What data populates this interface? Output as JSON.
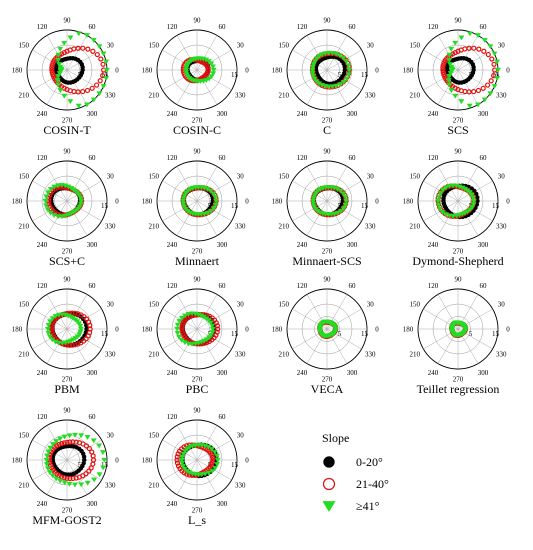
{
  "legend": {
    "title": "Slope",
    "items": [
      {
        "label": "0-20°",
        "marker": "circle-filled",
        "color": "#000000"
      },
      {
        "label": "21-40°",
        "marker": "circle-open",
        "color": "#e01010"
      },
      {
        "label": "≥41°",
        "marker": "triangle-down",
        "color": "#22dd22"
      }
    ]
  },
  "chart_data": [
    {
      "type": "scatter",
      "title": "COSIN-T",
      "radial_ticks": [
        "5",
        "15"
      ],
      "angle_ticks": [
        "0",
        "30",
        "60",
        "90",
        "120",
        "150",
        "180",
        "210",
        "240",
        "270",
        "300",
        "330"
      ],
      "series": [
        {
          "shape": [
            5,
            0.2,
            0.05,
            0,
            0.8
          ],
          "n": 34
        },
        {
          "shape": [
            9,
            0.45,
            0.15,
            0,
            1.0
          ],
          "n": 40
        },
        {
          "shape": [
            13,
            0.9,
            0.1,
            0,
            1.6
          ],
          "n": 30
        }
      ]
    },
    {
      "type": "scatter",
      "title": "COSIN-C",
      "radial_ticks": [
        "5",
        "15"
      ],
      "angle_ticks": [
        "0",
        "30",
        "60",
        "90",
        "120",
        "150",
        "180",
        "210",
        "240",
        "270",
        "300",
        "330"
      ],
      "series": [
        {
          "shape": [
            4,
            0.1,
            0.05,
            0,
            0.6
          ],
          "n": 34
        },
        {
          "shape": [
            4.5,
            0.15,
            0.1,
            3.14,
            0.6
          ],
          "n": 40
        },
        {
          "shape": [
            5,
            0.2,
            0.1,
            0,
            0.6
          ],
          "n": 30
        }
      ]
    },
    {
      "type": "scatter",
      "title": "C",
      "radial_ticks": [
        "5",
        "15"
      ],
      "angle_ticks": [
        "0",
        "30",
        "60",
        "90",
        "120",
        "150",
        "180",
        "210",
        "240",
        "270",
        "300",
        "330"
      ],
      "series": [
        {
          "shape": [
            5.5,
            0.25,
            0.05,
            0,
            0.6
          ],
          "n": 34
        },
        {
          "shape": [
            7,
            0.2,
            0.05,
            0,
            0.6
          ],
          "n": 40
        },
        {
          "shape": [
            7,
            0.2,
            0.05,
            0,
            0.6
          ],
          "n": 30
        }
      ]
    },
    {
      "type": "scatter",
      "title": "SCS",
      "radial_ticks": [
        "5",
        "15"
      ],
      "angle_ticks": [
        "0",
        "30",
        "60",
        "90",
        "120",
        "150",
        "180",
        "210",
        "240",
        "270",
        "300",
        "330"
      ],
      "series": [
        {
          "shape": [
            5,
            0.2,
            0.05,
            0,
            0.8
          ],
          "n": 34
        },
        {
          "shape": [
            9,
            0.45,
            0.15,
            0,
            1.0
          ],
          "n": 40
        },
        {
          "shape": [
            13,
            0.9,
            0.1,
            0,
            1.6
          ],
          "n": 30
        }
      ]
    },
    {
      "type": "scatter",
      "title": "SCS+C",
      "radial_ticks": [
        "5",
        "15"
      ],
      "angle_ticks": [
        "0",
        "30",
        "60",
        "90",
        "120",
        "150",
        "180",
        "210",
        "240",
        "270",
        "300",
        "330"
      ],
      "series": [
        {
          "shape": [
            5.5,
            0.1,
            0.05,
            3.14,
            0.6
          ],
          "n": 34
        },
        {
          "shape": [
            6,
            0.15,
            0.1,
            3.14,
            0.6
          ],
          "n": 40
        },
        {
          "shape": [
            6.5,
            0.25,
            0.1,
            3.14,
            0.6
          ],
          "n": 30
        }
      ]
    },
    {
      "type": "scatter",
      "title": "Minnaert",
      "radial_ticks": [
        "5",
        "15"
      ],
      "angle_ticks": [
        "0",
        "30",
        "60",
        "90",
        "120",
        "150",
        "180",
        "210",
        "240",
        "270",
        "300",
        "330"
      ],
      "series": [
        {
          "shape": [
            5.5,
            0.1,
            0.05,
            0,
            0.6
          ],
          "n": 34
        },
        {
          "shape": [
            6,
            0.15,
            0.1,
            0,
            0.6
          ],
          "n": 40
        },
        {
          "shape": [
            6,
            0.15,
            0.1,
            0,
            0.6
          ],
          "n": 30
        }
      ]
    },
    {
      "type": "scatter",
      "title": "Minnaert-SCS",
      "radial_ticks": [
        "5",
        "15"
      ],
      "angle_ticks": [
        "0",
        "30",
        "60",
        "90",
        "120",
        "150",
        "180",
        "210",
        "240",
        "270",
        "300",
        "330"
      ],
      "series": [
        {
          "shape": [
            5.5,
            0.1,
            0.05,
            0,
            0.6
          ],
          "n": 34
        },
        {
          "shape": [
            6,
            0.15,
            0.1,
            0,
            0.6
          ],
          "n": 40
        },
        {
          "shape": [
            6,
            0.15,
            0.1,
            0,
            0.6
          ],
          "n": 30
        }
      ]
    },
    {
      "type": "scatter",
      "title": "Dymond-Shepherd",
      "radial_ticks": [
        "5",
        "15"
      ],
      "angle_ticks": [
        "0",
        "30",
        "60",
        "90",
        "120",
        "150",
        "180",
        "210",
        "240",
        "270",
        "300",
        "330"
      ],
      "series": [
        {
          "shape": [
            6.5,
            0.15,
            0.05,
            0,
            0.6
          ],
          "n": 34
        },
        {
          "shape": [
            6.5,
            0.15,
            0.1,
            3.14,
            0.6
          ],
          "n": 40
        },
        {
          "shape": [
            6.5,
            0.15,
            0.1,
            3.14,
            0.6
          ],
          "n": 30
        }
      ]
    },
    {
      "type": "scatter",
      "title": "PBM",
      "radial_ticks": [
        "5",
        "15"
      ],
      "angle_ticks": [
        "0",
        "30",
        "60",
        "90",
        "120",
        "150",
        "180",
        "210",
        "240",
        "270",
        "300",
        "330"
      ],
      "series": [
        {
          "shape": [
            6.5,
            0.15,
            0.05,
            0,
            0.6
          ],
          "n": 34
        },
        {
          "shape": [
            7,
            0.2,
            0.1,
            0,
            0.6
          ],
          "n": 40
        },
        {
          "shape": [
            6,
            0.2,
            0.1,
            3.14,
            0.6
          ],
          "n": 30
        }
      ]
    },
    {
      "type": "scatter",
      "title": "PBC",
      "radial_ticks": [
        "5",
        "15"
      ],
      "angle_ticks": [
        "0",
        "30",
        "60",
        "90",
        "120",
        "150",
        "180",
        "210",
        "240",
        "270",
        "300",
        "330"
      ],
      "series": [
        {
          "shape": [
            6,
            0.1,
            0.05,
            0,
            0.6
          ],
          "n": 34
        },
        {
          "shape": [
            6.5,
            0.15,
            0.1,
            0,
            0.6
          ],
          "n": 40
        },
        {
          "shape": [
            6.5,
            0.15,
            0.1,
            3.14,
            0.6
          ],
          "n": 30
        }
      ]
    },
    {
      "type": "scatter",
      "title": "VECA",
      "radial_ticks": [
        "5",
        "15"
      ],
      "angle_ticks": [
        "0",
        "30",
        "60",
        "90",
        "120",
        "150",
        "180",
        "210",
        "240",
        "270",
        "300",
        "330"
      ],
      "series": [
        {
          "shape": [
            3,
            0.05,
            0.05,
            0,
            0.6
          ],
          "n": 34
        },
        {
          "shape": [
            3,
            0.05,
            0.05,
            0,
            0.6
          ],
          "n": 40
        },
        {
          "shape": [
            3,
            0.05,
            0.05,
            0,
            0.6
          ],
          "n": 30
        }
      ]
    },
    {
      "type": "scatter",
      "title": "Teillet regression",
      "radial_ticks": [
        "5",
        "15"
      ],
      "angle_ticks": [
        "0",
        "30",
        "60",
        "90",
        "120",
        "150",
        "180",
        "210",
        "240",
        "270",
        "300",
        "330"
      ],
      "series": [
        {
          "shape": [
            2.6,
            0.05,
            0.05,
            0,
            0.6
          ],
          "n": 34
        },
        {
          "shape": [
            2.6,
            0.05,
            0.05,
            0,
            0.6
          ],
          "n": 40
        },
        {
          "shape": [
            2.6,
            0.05,
            0.05,
            0,
            0.6
          ],
          "n": 30
        }
      ]
    },
    {
      "type": "scatter",
      "title": "MFM-GOST2",
      "radial_ticks": [
        "5",
        "15"
      ],
      "angle_ticks": [
        "0",
        "30",
        "60",
        "90",
        "120",
        "150",
        "180",
        "210",
        "240",
        "270",
        "300",
        "330"
      ],
      "series": [
        {
          "shape": [
            6,
            0.1,
            0.05,
            0,
            0.6
          ],
          "n": 34
        },
        {
          "shape": [
            8,
            0.2,
            0.1,
            0,
            0.8
          ],
          "n": 40
        },
        {
          "shape": [
            10.5,
            0.3,
            0.1,
            0,
            0.8
          ],
          "n": 30
        }
      ]
    },
    {
      "type": "scatter",
      "title": "L_s",
      "radial_ticks": [
        "5",
        "15"
      ],
      "angle_ticks": [
        "0",
        "30",
        "60",
        "90",
        "120",
        "150",
        "180",
        "210",
        "240",
        "270",
        "300",
        "330"
      ],
      "series": [
        {
          "shape": [
            6.5,
            0.15,
            0.05,
            0,
            0.6
          ],
          "n": 34
        },
        {
          "shape": [
            6.5,
            0.15,
            0.1,
            3.14,
            0.6
          ],
          "n": 40
        },
        {
          "shape": [
            6.5,
            0.15,
            0.1,
            0,
            0.6
          ],
          "n": 30
        }
      ]
    }
  ]
}
